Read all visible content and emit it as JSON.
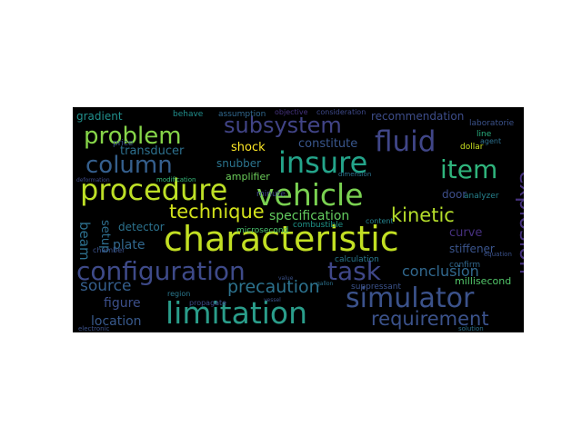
{
  "word_cloud": {
    "background": "#000000",
    "palette": "viridis",
    "words": [
      {
        "text": "characteristic",
        "color": "#c2df23"
      },
      {
        "text": "configuration",
        "color": "#3e4a89"
      },
      {
        "text": "limitation",
        "color": "#2a9d8a"
      },
      {
        "text": "procedure",
        "color": "#bddf26"
      },
      {
        "text": "simulator",
        "color": "#3b528b"
      },
      {
        "text": "insure",
        "color": "#24a48a"
      },
      {
        "text": "vehicle",
        "color": "#7ad151"
      },
      {
        "text": "problem",
        "color": "#86d549"
      },
      {
        "text": "fluid",
        "color": "#404688"
      },
      {
        "text": "subsystem",
        "color": "#414487"
      },
      {
        "text": "column",
        "color": "#355f8d"
      },
      {
        "text": "item",
        "color": "#2fb47c"
      },
      {
        "text": "task",
        "color": "#3f4788"
      },
      {
        "text": "explosion",
        "color": "#46327e"
      },
      {
        "text": "technique",
        "color": "#d2e21b"
      },
      {
        "text": "kinetic",
        "color": "#b5de2b"
      },
      {
        "text": "requirement",
        "color": "#3b528b"
      },
      {
        "text": "source",
        "color": "#355f8d"
      },
      {
        "text": "precaution",
        "color": "#2c728e"
      },
      {
        "text": "conclusion",
        "color": "#31688e"
      },
      {
        "text": "specification",
        "color": "#63cb5f"
      },
      {
        "text": "location",
        "color": "#38598c"
      },
      {
        "text": "beam",
        "color": "#2d708e"
      },
      {
        "text": "figure",
        "color": "#3c4f8a"
      },
      {
        "text": "plate",
        "color": "#31688e"
      },
      {
        "text": "transducer",
        "color": "#2d708e"
      },
      {
        "text": "shock",
        "color": "#fde725"
      },
      {
        "text": "constitute",
        "color": "#39568c"
      },
      {
        "text": "recommendation",
        "color": "#3d4d8a"
      },
      {
        "text": "gradient",
        "color": "#21908d"
      },
      {
        "text": "curve",
        "color": "#46307e"
      },
      {
        "text": "stiffener",
        "color": "#3a548c"
      },
      {
        "text": "setup",
        "color": "#2e6e8e"
      },
      {
        "text": "detector",
        "color": "#2c728e"
      },
      {
        "text": "door",
        "color": "#3d4e8a"
      },
      {
        "text": "snubber",
        "color": "#2b748e"
      },
      {
        "text": "amplifier",
        "color": "#6ccd5a"
      },
      {
        "text": "millisecond",
        "color": "#52c569"
      },
      {
        "text": "confirm",
        "color": "#31688e"
      },
      {
        "text": "analyzer",
        "color": "#26828e"
      },
      {
        "text": "combustible",
        "color": "#1f958b"
      },
      {
        "text": "suppressant",
        "color": "#3b528b"
      },
      {
        "text": "calculation",
        "color": "#2a788e"
      },
      {
        "text": "microsecond",
        "color": "#4ac16d"
      },
      {
        "text": "behave",
        "color": "#218f8d"
      },
      {
        "text": "assumption",
        "color": "#31688e"
      },
      {
        "text": "objective",
        "color": "#46337f"
      },
      {
        "text": "consideration",
        "color": "#3e4989"
      },
      {
        "text": "laboratorie",
        "color": "#3b528b"
      },
      {
        "text": "price",
        "color": "#3b528b"
      },
      {
        "text": "dollar",
        "color": "#c8e020"
      },
      {
        "text": "line",
        "color": "#29af7f"
      },
      {
        "text": "agent",
        "color": "#2d708e"
      },
      {
        "text": "minute",
        "color": "#3f4889"
      },
      {
        "text": "chamber",
        "color": "#3b528b"
      },
      {
        "text": "region",
        "color": "#2a788e"
      },
      {
        "text": "propagate",
        "color": "#3e4c8a"
      },
      {
        "text": "content",
        "color": "#25848e"
      },
      {
        "text": "equation",
        "color": "#3b528b"
      },
      {
        "text": "dimension",
        "color": "#2c728e"
      },
      {
        "text": "electronic",
        "color": "#3b528b"
      },
      {
        "text": "solution",
        "color": "#2c728e"
      },
      {
        "text": "modification",
        "color": "#35b779"
      },
      {
        "text": "deformation",
        "color": "#3e4a89"
      },
      {
        "text": "value",
        "color": "#3b528b"
      },
      {
        "text": "gallon",
        "color": "#2c728e"
      },
      {
        "text": "vessel",
        "color": "#3b528b"
      }
    ]
  }
}
